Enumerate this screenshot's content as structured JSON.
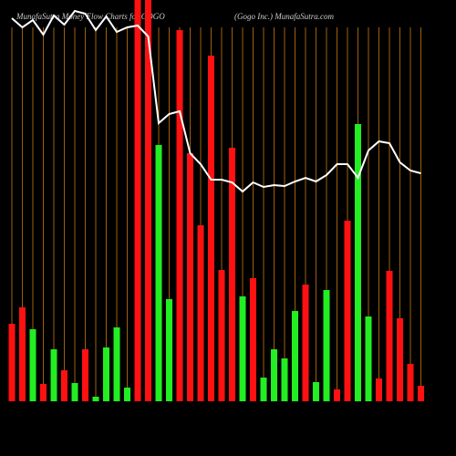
{
  "chart_data": {
    "type": "bar",
    "title": "MunafaSutra  Money Flow  Charts for GOGO",
    "subtitle": "(Gogo  Inc.) MunafaSutra.com",
    "ylim": [
      0,
      440
    ],
    "colors": {
      "up": "#22ee22",
      "down": "#ff1111",
      "grid": "#a0600a",
      "line": "#ffffff"
    },
    "series": [
      {
        "name": "money flow",
        "values": [
          85,
          103,
          79,
          19,
          57,
          34,
          20,
          57,
          5,
          59,
          81,
          15,
          440,
          440,
          281,
          112,
          407,
          272,
          193,
          379,
          144,
          278,
          115,
          135,
          26,
          57,
          47,
          99,
          128,
          21,
          122,
          13,
          198,
          304,
          93,
          25,
          143,
          91,
          41,
          17
        ],
        "directions": [
          "down",
          "down",
          "up",
          "down",
          "up",
          "down",
          "up",
          "down",
          "up",
          "up",
          "up",
          "up",
          "down",
          "down",
          "up",
          "up",
          "down",
          "down",
          "down",
          "down",
          "down",
          "down",
          "up",
          "down",
          "up",
          "up",
          "up",
          "up",
          "down",
          "up",
          "up",
          "down",
          "down",
          "up",
          "up",
          "down",
          "down",
          "down",
          "down",
          "down"
        ]
      },
      {
        "name": "price",
        "values": [
          420,
          410,
          418,
          402,
          423,
          413,
          428,
          425,
          407,
          422,
          405,
          410,
          412,
          400,
          305,
          315,
          318,
          272,
          260,
          243,
          243,
          240,
          230,
          240,
          235,
          237,
          236,
          241,
          245,
          241,
          248,
          260,
          260,
          245,
          275,
          285,
          283,
          262,
          253,
          250
        ]
      }
    ]
  }
}
